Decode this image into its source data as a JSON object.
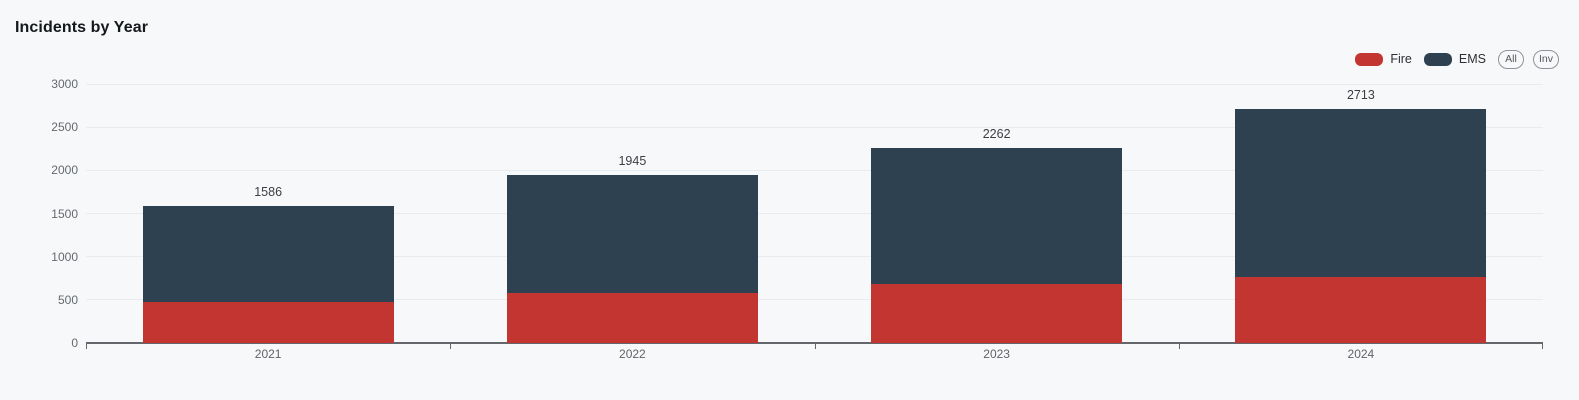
{
  "title": "Incidents by Year",
  "legend": {
    "items": [
      {
        "label": "Fire",
        "color": "#c23531"
      },
      {
        "label": "EMS",
        "color": "#2e4150"
      }
    ],
    "buttons": [
      {
        "label": "All"
      },
      {
        "label": "Inv"
      }
    ]
  },
  "chart_data": {
    "type": "bar",
    "stacked": true,
    "title": "Incidents by Year",
    "categories": [
      "2021",
      "2022",
      "2023",
      "2024"
    ],
    "series": [
      {
        "name": "Fire",
        "color": "#c23531",
        "values": [
          470,
          575,
          680,
          765
        ]
      },
      {
        "name": "EMS",
        "color": "#2e4150",
        "values": [
          1116,
          1370,
          1582,
          1948
        ]
      }
    ],
    "totals": [
      1586,
      1945,
      2262,
      2713
    ],
    "xlabel": "",
    "ylabel": "",
    "ylim": [
      0,
      3000
    ],
    "yticks": [
      0,
      500,
      1000,
      1500,
      2000,
      2500,
      3000
    ],
    "grid": true,
    "legend_position": "top-right",
    "colors": {
      "background": "#f7f8f9",
      "gridline": "#e9ebee",
      "axis_line": "#63676c",
      "tick_text": "#65696e",
      "total_label_text": "#3b3f44"
    }
  }
}
